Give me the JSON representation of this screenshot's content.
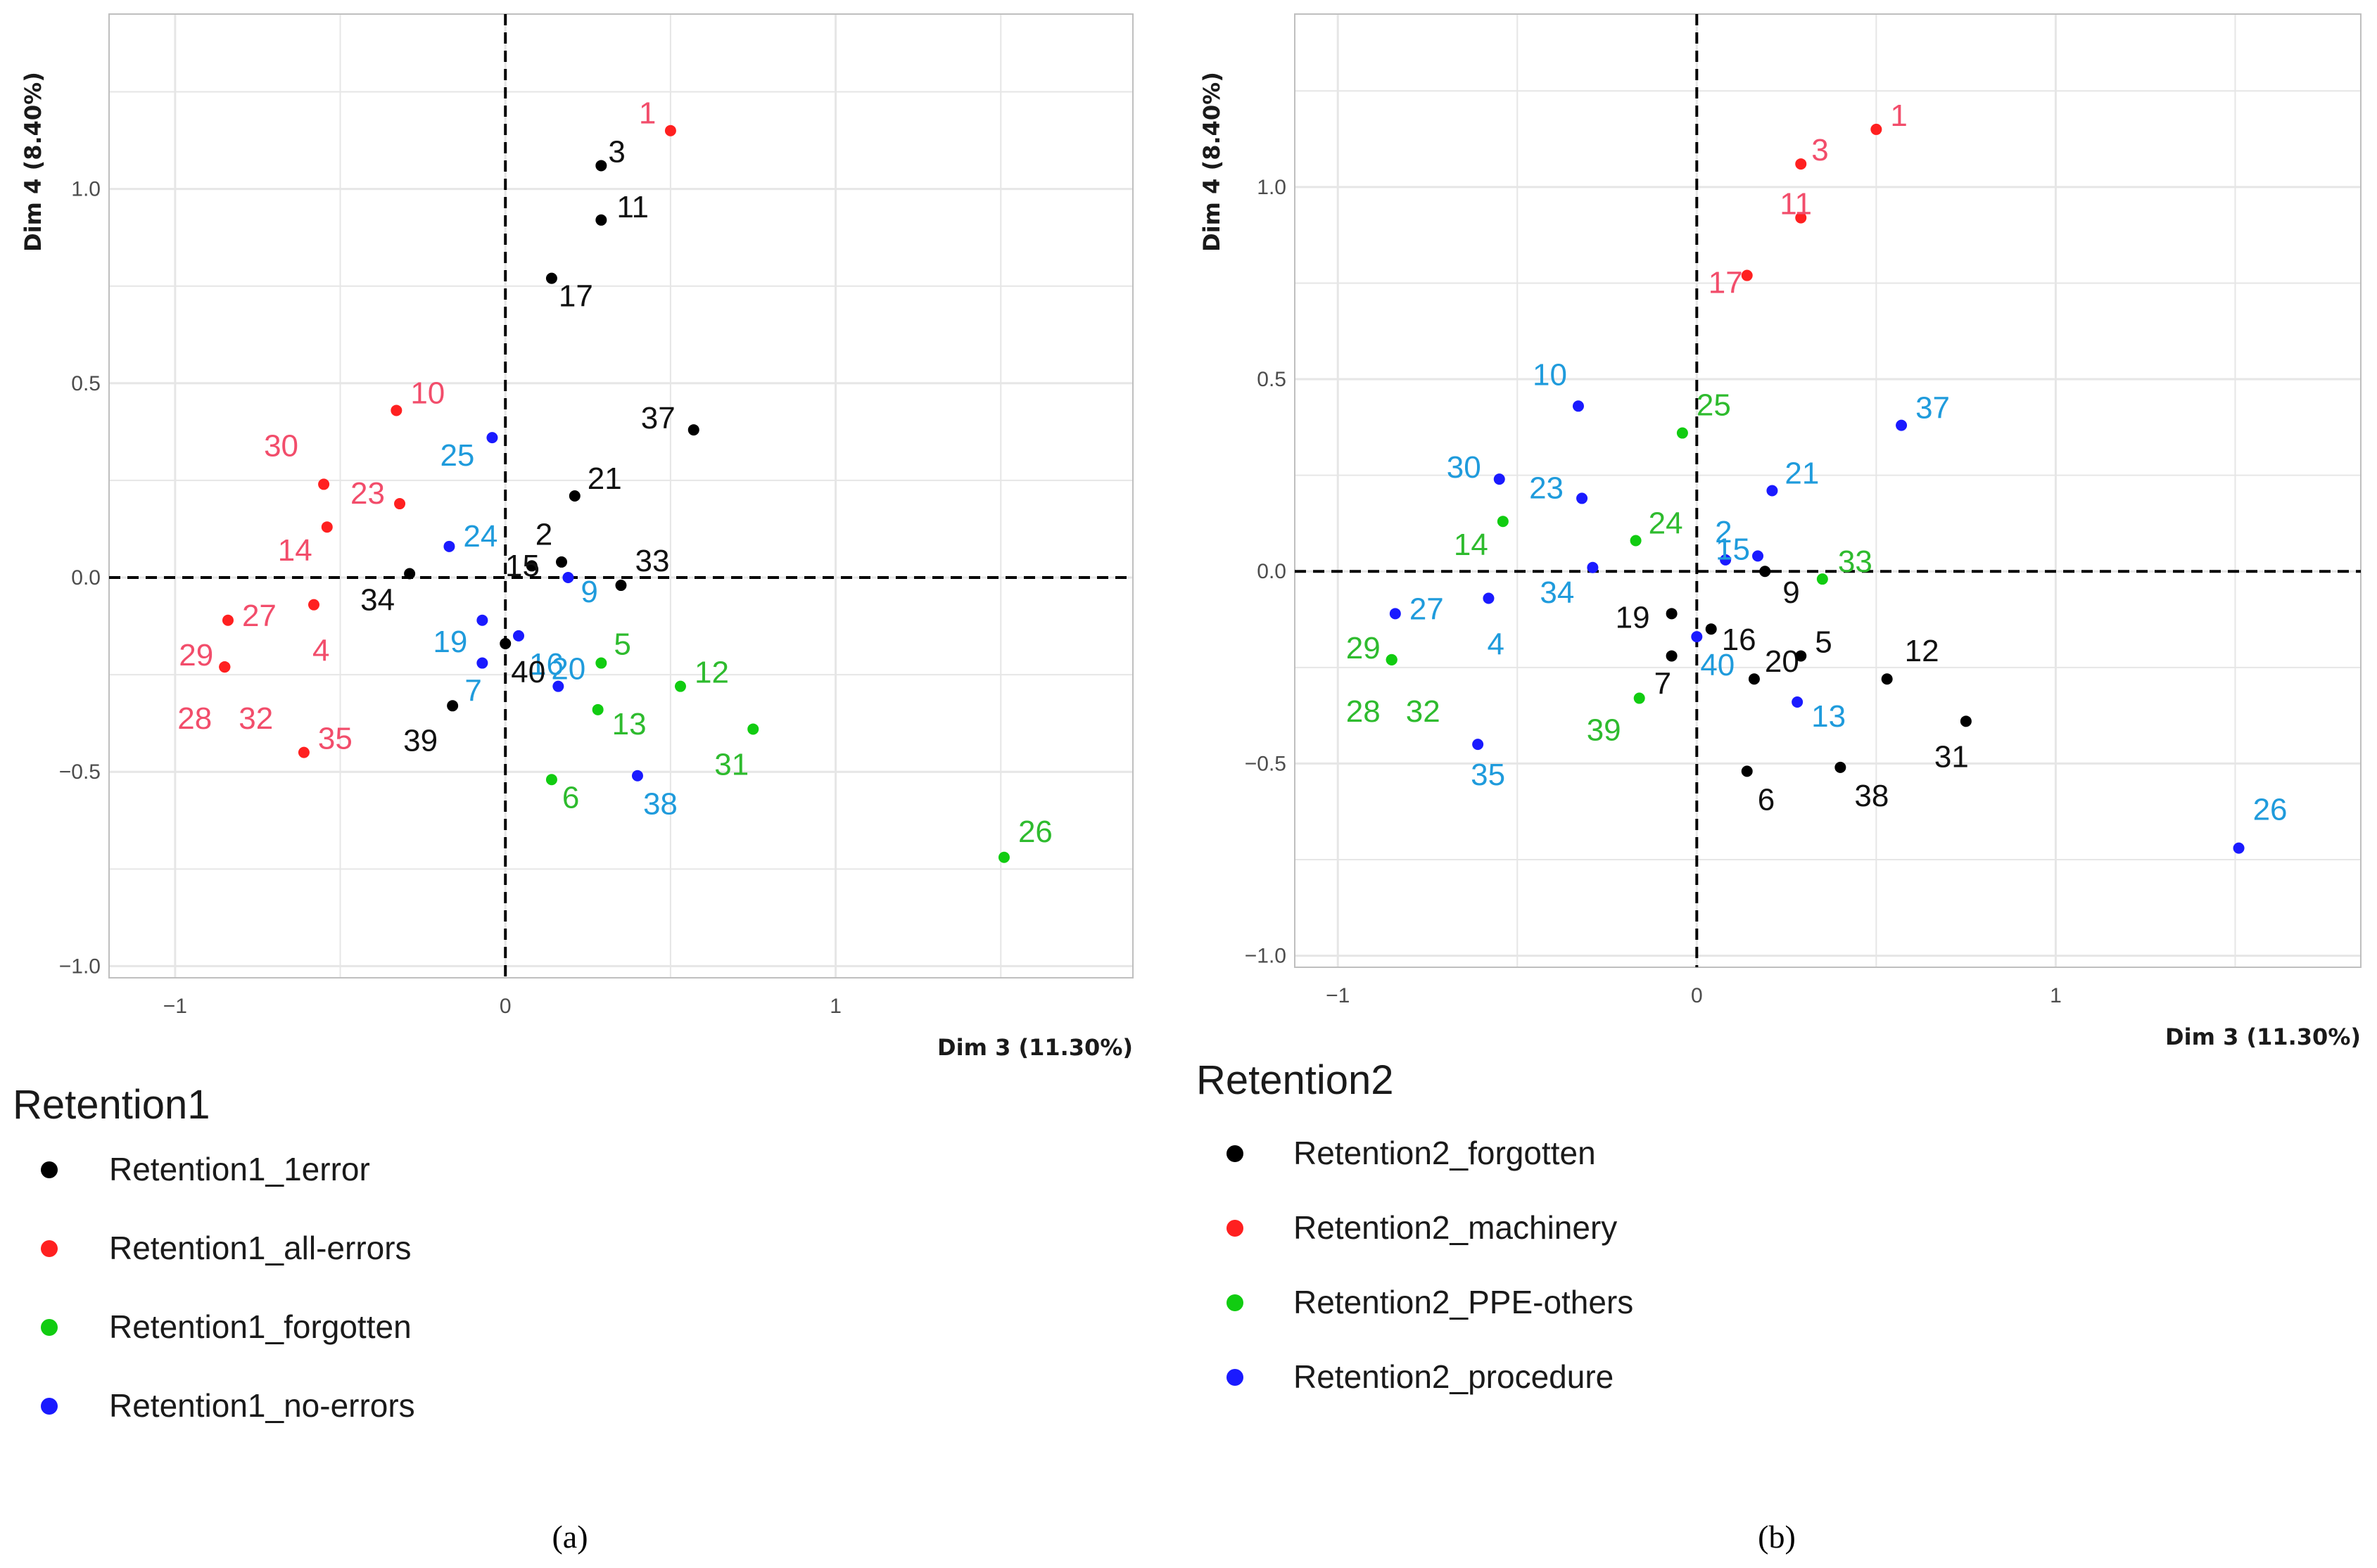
{
  "colors": {
    "black": "#000000",
    "red": "#ff2020",
    "green": "#11cc11",
    "blue": "#1a1aff",
    "label_black": "#111111",
    "label_red": "#f24d6b",
    "label_green": "#2ebb2e",
    "label_blue": "#1f9bdc",
    "grid": "#e6e6e6",
    "panel_border": "#bfbfbf"
  },
  "chart_data": [
    {
      "type": "scatter",
      "caption": "(a)",
      "xlabel": "Dim 3 (11.30%)",
      "ylabel": "Dim 4 (8.40%)",
      "xlim": [
        -1.2,
        1.9
      ],
      "ylim": [
        -1.03,
        1.45
      ],
      "xticks": [
        -1,
        0,
        1
      ],
      "xtick_labels": [
        "−1",
        "0",
        "1"
      ],
      "yticks": [
        -1.0,
        -0.5,
        0.0,
        0.5,
        1.0
      ],
      "ytick_labels": [
        "−1.0",
        "−0.5",
        "0.0",
        "0.5",
        "1.0"
      ],
      "grid": true,
      "legend_title": "Retention1",
      "legend": [
        {
          "label": "Retention1_1error",
          "color": "#000000"
        },
        {
          "label": "Retention1_all-errors",
          "color": "#ff2020"
        },
        {
          "label": "Retention1_forgotten",
          "color": "#11cc11"
        },
        {
          "label": "Retention1_no-errors",
          "color": "#1a1aff"
        }
      ],
      "points": [
        {
          "id": "1",
          "x": 0.5,
          "y": 1.15,
          "group": 1
        },
        {
          "id": "3",
          "x": 0.29,
          "y": 1.06,
          "group": 0
        },
        {
          "id": "11",
          "x": 0.29,
          "y": 0.92,
          "group": 0
        },
        {
          "id": "17",
          "x": 0.14,
          "y": 0.77,
          "group": 0
        },
        {
          "id": "10",
          "x": -0.33,
          "y": 0.43,
          "group": 1
        },
        {
          "id": "37",
          "x": 0.57,
          "y": 0.38,
          "group": 0
        },
        {
          "id": "25",
          "x": -0.04,
          "y": 0.36,
          "group": 3
        },
        {
          "id": "30",
          "x": -0.55,
          "y": 0.24,
          "group": 1
        },
        {
          "id": "23",
          "x": -0.32,
          "y": 0.19,
          "group": 1
        },
        {
          "id": "21",
          "x": 0.21,
          "y": 0.21,
          "group": 0
        },
        {
          "id": "14",
          "x": -0.54,
          "y": 0.13,
          "group": 1
        },
        {
          "id": "24",
          "x": -0.17,
          "y": 0.08,
          "group": 3
        },
        {
          "id": "2",
          "x": 0.08,
          "y": 0.03,
          "group": 0
        },
        {
          "id": "34",
          "x": -0.29,
          "y": 0.01,
          "group": 0
        },
        {
          "id": "15",
          "x": 0.17,
          "y": 0.04,
          "group": 0
        },
        {
          "id": "9",
          "x": 0.19,
          "y": 0.0,
          "group": 3
        },
        {
          "id": "33",
          "x": 0.35,
          "y": -0.02,
          "group": 0
        },
        {
          "id": "27",
          "x": -0.84,
          "y": -0.11,
          "group": 1
        },
        {
          "id": "4",
          "x": -0.58,
          "y": -0.07,
          "group": 1
        },
        {
          "id": "19",
          "x": -0.07,
          "y": -0.11,
          "group": 3
        },
        {
          "id": "16",
          "x": 0.04,
          "y": -0.15,
          "group": 3
        },
        {
          "id": "29",
          "x": -0.85,
          "y": -0.23,
          "group": 1
        },
        {
          "id": "7",
          "x": -0.07,
          "y": -0.22,
          "group": 3
        },
        {
          "id": "20",
          "x": 0.16,
          "y": -0.28,
          "group": 3
        },
        {
          "id": "5",
          "x": 0.29,
          "y": -0.22,
          "group": 2
        },
        {
          "id": "40",
          "x": 0.0,
          "y": -0.17,
          "group": 0
        },
        {
          "id": "12",
          "x": 0.53,
          "y": -0.28,
          "group": 2
        },
        {
          "id": "39",
          "x": -0.16,
          "y": -0.33,
          "group": 0
        },
        {
          "id": "13",
          "x": 0.28,
          "y": -0.34,
          "group": 2
        },
        {
          "id": "31",
          "x": 0.75,
          "y": -0.39,
          "group": 2
        },
        {
          "id": "35",
          "x": -0.61,
          "y": -0.45,
          "group": 1
        },
        {
          "id": "6",
          "x": 0.14,
          "y": -0.52,
          "group": 2
        },
        {
          "id": "38",
          "x": 0.4,
          "y": -0.51,
          "group": 3
        },
        {
          "id": "26",
          "x": 1.51,
          "y": -0.72,
          "group": 2
        },
        {
          "id": "28",
          "x": -0.85,
          "y": -0.23,
          "group": 1
        },
        {
          "id": "32",
          "x": -0.85,
          "y": -0.23,
          "group": 1
        }
      ]
    },
    {
      "type": "scatter",
      "caption": "(b)",
      "xlabel": "Dim 3 (11.30%)",
      "ylabel": "Dim 4 (8.40%)",
      "xlim": [
        -1.12,
        1.85
      ],
      "ylim": [
        -1.03,
        1.45
      ],
      "xticks": [
        -1,
        0,
        1
      ],
      "xtick_labels": [
        "−1",
        "0",
        "1"
      ],
      "yticks": [
        -1.0,
        -0.5,
        0.0,
        0.5,
        1.0
      ],
      "ytick_labels": [
        "−1.0",
        "−0.5",
        "0.0",
        "0.5",
        "1.0"
      ],
      "grid": true,
      "legend_title": "Retention2",
      "legend": [
        {
          "label": "Retention2_forgotten",
          "color": "#000000"
        },
        {
          "label": "Retention2_machinery",
          "color": "#ff2020"
        },
        {
          "label": "Retention2_PPE-others",
          "color": "#11cc11"
        },
        {
          "label": "Retention2_procedure",
          "color": "#1a1aff"
        }
      ],
      "points": [
        {
          "id": "1",
          "x": 0.5,
          "y": 1.15,
          "group": 1
        },
        {
          "id": "3",
          "x": 0.29,
          "y": 1.06,
          "group": 1
        },
        {
          "id": "11",
          "x": 0.29,
          "y": 0.92,
          "group": 1
        },
        {
          "id": "17",
          "x": 0.14,
          "y": 0.77,
          "group": 1
        },
        {
          "id": "10",
          "x": -0.33,
          "y": 0.43,
          "group": 3
        },
        {
          "id": "37",
          "x": 0.57,
          "y": 0.38,
          "group": 3
        },
        {
          "id": "25",
          "x": -0.04,
          "y": 0.36,
          "group": 2
        },
        {
          "id": "30",
          "x": -0.55,
          "y": 0.24,
          "group": 3
        },
        {
          "id": "23",
          "x": -0.32,
          "y": 0.19,
          "group": 3
        },
        {
          "id": "21",
          "x": 0.21,
          "y": 0.21,
          "group": 3
        },
        {
          "id": "14",
          "x": -0.54,
          "y": 0.13,
          "group": 2
        },
        {
          "id": "24",
          "x": -0.17,
          "y": 0.08,
          "group": 2
        },
        {
          "id": "2",
          "x": 0.08,
          "y": 0.03,
          "group": 3
        },
        {
          "id": "34",
          "x": -0.29,
          "y": 0.01,
          "group": 3
        },
        {
          "id": "15",
          "x": 0.17,
          "y": 0.04,
          "group": 3
        },
        {
          "id": "9",
          "x": 0.19,
          "y": 0.0,
          "group": 0
        },
        {
          "id": "33",
          "x": 0.35,
          "y": -0.02,
          "group": 2
        },
        {
          "id": "27",
          "x": -0.84,
          "y": -0.11,
          "group": 3
        },
        {
          "id": "4",
          "x": -0.58,
          "y": -0.07,
          "group": 3
        },
        {
          "id": "19",
          "x": -0.07,
          "y": -0.11,
          "group": 0
        },
        {
          "id": "16",
          "x": 0.04,
          "y": -0.15,
          "group": 0
        },
        {
          "id": "29",
          "x": -0.85,
          "y": -0.23,
          "group": 2
        },
        {
          "id": "7",
          "x": -0.07,
          "y": -0.22,
          "group": 0
        },
        {
          "id": "20",
          "x": 0.16,
          "y": -0.28,
          "group": 0
        },
        {
          "id": "5",
          "x": 0.29,
          "y": -0.22,
          "group": 0
        },
        {
          "id": "40",
          "x": 0.0,
          "y": -0.17,
          "group": 3
        },
        {
          "id": "12",
          "x": 0.53,
          "y": -0.28,
          "group": 0
        },
        {
          "id": "39",
          "x": -0.16,
          "y": -0.33,
          "group": 2
        },
        {
          "id": "13",
          "x": 0.28,
          "y": -0.34,
          "group": 3
        },
        {
          "id": "31",
          "x": 0.75,
          "y": -0.39,
          "group": 0
        },
        {
          "id": "35",
          "x": -0.61,
          "y": -0.45,
          "group": 3
        },
        {
          "id": "6",
          "x": 0.14,
          "y": -0.52,
          "group": 0
        },
        {
          "id": "38",
          "x": 0.4,
          "y": -0.51,
          "group": 0
        },
        {
          "id": "26",
          "x": 1.51,
          "y": -0.72,
          "group": 3
        },
        {
          "id": "28",
          "x": -0.85,
          "y": -0.23,
          "group": 2
        },
        {
          "id": "32",
          "x": -0.85,
          "y": -0.23,
          "group": 2
        }
      ]
    }
  ]
}
